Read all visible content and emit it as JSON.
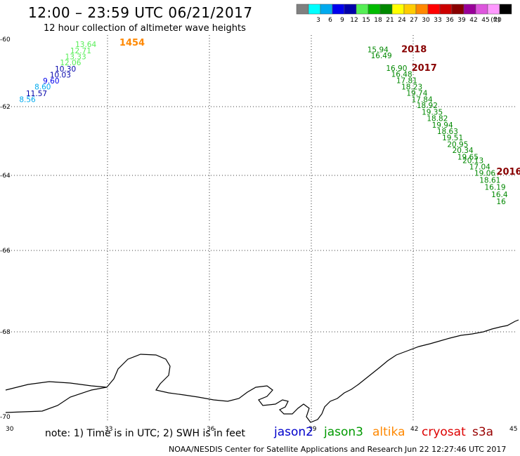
{
  "header": {
    "title": "12:00 – 23:59 UTC 06/21/2017",
    "subtitle": "12 hour collection of altimeter wave heights"
  },
  "color_scale": {
    "unit_label": "(ft)",
    "bins": [
      {
        "label": "",
        "color": "#808080"
      },
      {
        "label": "3",
        "color": "#00ffff"
      },
      {
        "label": "6",
        "color": "#00aaee"
      },
      {
        "label": "9",
        "color": "#0000ee"
      },
      {
        "label": "12",
        "color": "#0000aa"
      },
      {
        "label": "15",
        "color": "#55ee55"
      },
      {
        "label": "18",
        "color": "#00bb00"
      },
      {
        "label": "21",
        "color": "#008800"
      },
      {
        "label": "24",
        "color": "#ffff00"
      },
      {
        "label": "27",
        "color": "#ffcc00"
      },
      {
        "label": "30",
        "color": "#ff8800"
      },
      {
        "label": "33",
        "color": "#ff0000"
      },
      {
        "label": "36",
        "color": "#cc0000"
      },
      {
        "label": "39",
        "color": "#880000"
      },
      {
        "label": "42",
        "color": "#990099"
      },
      {
        "label": "45",
        "color": "#dd55dd"
      },
      {
        "label": "70",
        "color": "#ff99ff"
      },
      {
        "label": "",
        "color": "#000000"
      }
    ]
  },
  "axes": {
    "lon_ticks": [
      "30",
      "33",
      "36",
      "39",
      "42",
      "45"
    ],
    "lat_ticks": [
      "-60",
      "-62",
      "-64",
      "-66",
      "-68",
      "-70"
    ],
    "lon_range": [
      30,
      45
    ],
    "lat_range": [
      -60,
      -70
    ]
  },
  "passes": [
    {
      "label": "1454",
      "color": "#ff8800",
      "lon": 33.35,
      "lat": -60.1
    },
    {
      "label": "2018",
      "color": "#880000",
      "lon": 41.65,
      "lat": -60.3
    },
    {
      "label": "2017",
      "color": "#880000",
      "lon": 41.95,
      "lat": -60.85
    },
    {
      "label": "2016",
      "color": "#880000",
      "lon": 44.45,
      "lat": -63.9
    }
  ],
  "observations": [
    {
      "value": "13.64",
      "color": "#55ee55",
      "lon": 32.05,
      "lat": -60.15
    },
    {
      "value": "12.71",
      "color": "#55ee55",
      "lon": 31.9,
      "lat": -60.33
    },
    {
      "value": "13.33",
      "color": "#55ee55",
      "lon": 31.75,
      "lat": -60.51
    },
    {
      "value": "12.06",
      "color": "#55ee55",
      "lon": 31.6,
      "lat": -60.69
    },
    {
      "value": "10.30",
      "color": "#0000aa",
      "lon": 31.45,
      "lat": -60.87
    },
    {
      "value": "10.03",
      "color": "#0000aa",
      "lon": 31.3,
      "lat": -61.05
    },
    {
      "value": "9.60",
      "color": "#0000ee",
      "lon": 31.1,
      "lat": -61.23
    },
    {
      "value": "8.60",
      "color": "#00aaee",
      "lon": 30.85,
      "lat": -61.41
    },
    {
      "value": "11.57",
      "color": "#0000aa",
      "lon": 30.6,
      "lat": -61.6
    },
    {
      "value": "8.56",
      "color": "#00aaee",
      "lon": 30.4,
      "lat": -61.78
    },
    {
      "value": "15.94",
      "color": "#008800",
      "lon": 40.65,
      "lat": -60.3
    },
    {
      "value": "16.49",
      "color": "#008800",
      "lon": 40.75,
      "lat": -60.48
    },
    {
      "value": "16.90",
      "color": "#008800",
      "lon": 41.2,
      "lat": -60.85
    },
    {
      "value": "16.48",
      "color": "#008800",
      "lon": 41.35,
      "lat": -61.03
    },
    {
      "value": "17.81",
      "color": "#008800",
      "lon": 41.5,
      "lat": -61.22
    },
    {
      "value": "18.23",
      "color": "#008800",
      "lon": 41.65,
      "lat": -61.41
    },
    {
      "value": "19.74",
      "color": "#008800",
      "lon": 41.8,
      "lat": -61.59
    },
    {
      "value": "17.84",
      "color": "#008800",
      "lon": 41.95,
      "lat": -61.78
    },
    {
      "value": "18.92",
      "color": "#008800",
      "lon": 42.1,
      "lat": -61.96
    },
    {
      "value": "19.35",
      "color": "#008800",
      "lon": 42.25,
      "lat": -62.15
    },
    {
      "value": "18.82",
      "color": "#008800",
      "lon": 42.4,
      "lat": -62.34
    },
    {
      "value": "19.94",
      "color": "#008800",
      "lon": 42.55,
      "lat": -62.53
    },
    {
      "value": "18.63",
      "color": "#008800",
      "lon": 42.7,
      "lat": -62.71
    },
    {
      "value": "19.51",
      "color": "#008800",
      "lon": 42.85,
      "lat": -62.9
    },
    {
      "value": "20.95",
      "color": "#008800",
      "lon": 43.0,
      "lat": -63.09
    },
    {
      "value": "20.34",
      "color": "#008800",
      "lon": 43.15,
      "lat": -63.27
    },
    {
      "value": "19.65",
      "color": "#008800",
      "lon": 43.3,
      "lat": -63.46
    },
    {
      "value": "20.13",
      "color": "#008800",
      "lon": 43.45,
      "lat": -63.56
    },
    {
      "value": "17.04",
      "color": "#008800",
      "lon": 43.65,
      "lat": -63.74
    },
    {
      "value": "19.06",
      "color": "#008800",
      "lon": 43.8,
      "lat": -63.93
    },
    {
      "value": "18.61",
      "color": "#008800",
      "lon": 43.95,
      "lat": -64.12
    },
    {
      "value": "16.19",
      "color": "#008800",
      "lon": 44.1,
      "lat": -64.31
    },
    {
      "value": "16.4",
      "color": "#008800",
      "lon": 44.3,
      "lat": -64.5
    },
    {
      "value": "16",
      "color": "#008800",
      "lon": 44.45,
      "lat": -64.69
    }
  ],
  "footer": {
    "note": "note:  1) Time is in UTC;  2) SWH is in feet",
    "satellites": [
      {
        "name": "jason2",
        "color": "#0000cc"
      },
      {
        "name": "jason3",
        "color": "#009900"
      },
      {
        "name": "altika",
        "color": "#ff8800"
      },
      {
        "name": "cryosat",
        "color": "#dd0000"
      },
      {
        "name": "s3a",
        "color": "#990000"
      }
    ],
    "credit": "NOAA/NESDIS Center for Satellite Applications and Research",
    "timestamp": "Jun 22 12:27:46 UTC 2017"
  }
}
